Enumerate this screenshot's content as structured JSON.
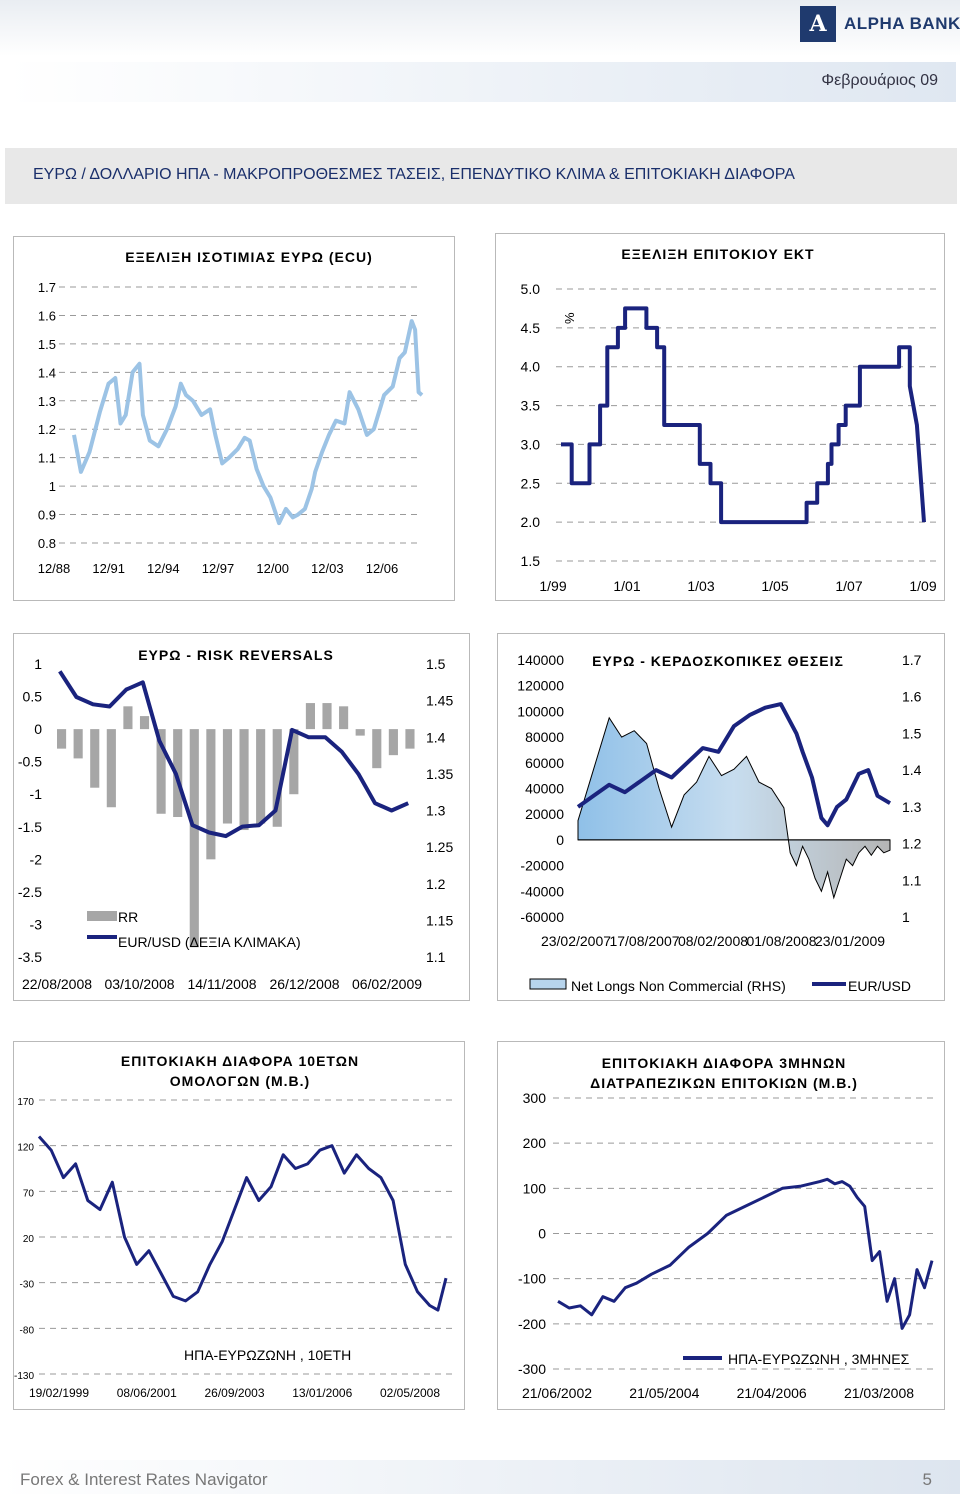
{
  "header": {
    "brand": "ALPHA BANK",
    "brand_mark": "A",
    "date": "Φεβρουάριος 09"
  },
  "page_title": "ΕΥΡΩ / ΔΟΛΛΑΡΙΟ ΗΠΑ - ΜΑΚΡΟΠΡΟΘΕΣΜΕΣ ΤΑΣΕΙΣ, ΕΠΕΝΔΥΤΙΚΟ ΚΛΙΜΑ & ΕΠΙΤΟΚΙΑΚΗ ΔΙΑΦΟΡΑ",
  "footer": {
    "text": "Forex & Interest Rates Navigator",
    "page": "5"
  },
  "colors": {
    "navy": "#1a237e",
    "light_blue": "#93c2e6",
    "gray_bar": "#a6a6a6",
    "gray_area": "#bdbdbd"
  },
  "chart_data": [
    {
      "type": "line",
      "title": "ΕΞΕΛΙΞΗ ΙΣΟΤΙΜΙΑΣ ΕΥΡΩ (ECU)",
      "y_ticks": [
        "1.7",
        "1.6",
        "1.5",
        "1.4",
        "1.3",
        "1.2",
        "1.1",
        "1",
        "0.9",
        "0.8"
      ],
      "ylim": [
        0.8,
        1.7
      ],
      "x_ticks": [
        "12/88",
        "12/91",
        "12/94",
        "12/97",
        "12/00",
        "12/03",
        "12/06"
      ],
      "xlim": [
        1988.9,
        2009.1
      ],
      "series": [
        {
          "color": "#9cc3e5",
          "x": [
            1988.9,
            1989.3,
            1989.8,
            1990.4,
            1990.9,
            1991.3,
            1991.6,
            1991.9,
            1992.3,
            1992.7,
            1992.9,
            1993.3,
            1993.8,
            1994.3,
            1994.8,
            1995.1,
            1995.4,
            1995.8,
            1996.3,
            1996.8,
            1997.1,
            1997.5,
            1997.9,
            1998.4,
            1998.8,
            1999.1,
            1999.5,
            1999.9,
            2000.3,
            2000.8,
            2001.2,
            2001.6,
            2001.9,
            2002.3,
            2002.7,
            2002.9,
            2003.3,
            2003.7,
            2004.1,
            2004.6,
            2004.9,
            2005.4,
            2005.9,
            2006.3,
            2006.7,
            2006.9,
            2007.4,
            2007.8,
            2008.1,
            2008.5,
            2008.7,
            2008.9,
            2009.1
          ],
          "y": [
            1.18,
            1.05,
            1.12,
            1.26,
            1.36,
            1.38,
            1.22,
            1.25,
            1.4,
            1.43,
            1.25,
            1.16,
            1.14,
            1.2,
            1.28,
            1.36,
            1.32,
            1.3,
            1.25,
            1.27,
            1.18,
            1.08,
            1.1,
            1.13,
            1.17,
            1.16,
            1.06,
            1.0,
            0.96,
            0.87,
            0.92,
            0.89,
            0.9,
            0.92,
            0.99,
            1.05,
            1.12,
            1.18,
            1.23,
            1.22,
            1.33,
            1.27,
            1.18,
            1.2,
            1.28,
            1.32,
            1.35,
            1.45,
            1.47,
            1.58,
            1.55,
            1.33,
            1.32
          ]
        }
      ]
    },
    {
      "type": "line",
      "title": "ΕΞΕΛΙΞΗ ΕΠΙΤΟΚΙΟΥ ΕΚΤ",
      "ylabel": "%",
      "y_ticks": [
        "5.0",
        "4.5",
        "4.0",
        "3.5",
        "3.0",
        "2.5",
        "2.0",
        "1.5"
      ],
      "ylim": [
        1.5,
        5.0
      ],
      "x_ticks": [
        "1/99",
        "1/01",
        "1/03",
        "1/05",
        "1/07",
        "1/09"
      ],
      "xlim": [
        1999.0,
        2009.2
      ],
      "series": [
        {
          "color": "#1a237e",
          "x": [
            1999.0,
            1999.3,
            1999.3,
            1999.8,
            1999.8,
            2000.1,
            2000.1,
            2000.3,
            2000.3,
            2000.6,
            2000.6,
            2000.8,
            2000.8,
            2001.4,
            2001.4,
            2001.7,
            2001.7,
            2001.9,
            2001.9,
            2002.9,
            2002.9,
            2003.2,
            2003.2,
            2003.5,
            2003.5,
            2005.9,
            2005.9,
            2006.2,
            2006.2,
            2006.5,
            2006.5,
            2006.6,
            2006.6,
            2006.8,
            2006.8,
            2007.0,
            2007.0,
            2007.4,
            2007.4,
            2008.5,
            2008.5,
            2008.8,
            2008.8,
            2009.0,
            2009.2
          ],
          "y": [
            3.0,
            3.0,
            2.5,
            2.5,
            3.0,
            3.0,
            3.5,
            3.5,
            4.25,
            4.25,
            4.5,
            4.5,
            4.75,
            4.75,
            4.5,
            4.5,
            4.25,
            4.25,
            3.25,
            3.25,
            2.75,
            2.75,
            2.5,
            2.5,
            2.0,
            2.0,
            2.25,
            2.25,
            2.5,
            2.5,
            2.75,
            2.75,
            3.0,
            3.0,
            3.25,
            3.25,
            3.5,
            3.5,
            4.0,
            4.0,
            4.25,
            4.25,
            3.75,
            3.25,
            2.0
          ]
        }
      ]
    },
    {
      "type": "bar",
      "title": "ΕΥΡΩ - RISK REVERSALS",
      "y_ticks_left": [
        "1",
        "0.5",
        "0",
        "-0.5",
        "-1",
        "-1.5",
        "-2",
        "-2.5",
        "-3",
        "-3.5"
      ],
      "ylim_left": [
        -3.5,
        1.0
      ],
      "y_ticks_right": [
        "1.5",
        "1.45",
        "1.4",
        "1.35",
        "1.3",
        "1.25",
        "1.2",
        "1.15",
        "1.1"
      ],
      "ylim_right": [
        1.1,
        1.5
      ],
      "x_ticks": [
        "22/08/2008",
        "03/10/2008",
        "14/11/2008",
        "26/12/2008",
        "06/02/2009"
      ],
      "series": [
        {
          "name": "RR",
          "color": "#a6a6a6",
          "values": [
            -0.3,
            -0.45,
            -0.9,
            -1.2,
            0.35,
            0.2,
            -1.3,
            -1.35,
            -3.35,
            -2.0,
            -1.45,
            -1.55,
            -1.45,
            -1.5,
            -1.0,
            0.4,
            0.4,
            0.35,
            -0.1,
            -0.6,
            -0.4,
            -0.3
          ]
        },
        {
          "name": "EUR/USD (ΔΕΞΙΑ ΚΛΙΜΑΚΑ)",
          "color": "#1a237e",
          "values": [
            1.49,
            1.455,
            1.445,
            1.442,
            1.465,
            1.475,
            1.395,
            1.35,
            1.28,
            1.27,
            1.265,
            1.278,
            1.28,
            1.3,
            1.41,
            1.4,
            1.4,
            1.38,
            1.35,
            1.31,
            1.3,
            1.31
          ]
        }
      ]
    },
    {
      "type": "area",
      "title": "ΕΥΡΩ - ΚΕΡΔΟΣΚΟΠΙΚΕΣ ΘΕΣΕΙΣ",
      "y_ticks_left": [
        "140000",
        "120000",
        "100000",
        "80000",
        "60000",
        "40000",
        "20000",
        "0",
        "-20000",
        "-40000",
        "-60000"
      ],
      "ylim_left": [
        -60000,
        140000
      ],
      "y_ticks_right": [
        "1.7",
        "1.6",
        "1.5",
        "1.4",
        "1.3",
        "1.2",
        "1.1",
        "1"
      ],
      "ylim_right": [
        1.0,
        1.7
      ],
      "x_ticks": [
        "23/02/2007",
        "17/08/2007",
        "08/02/2008",
        "01/08/2008",
        "23/01/2009"
      ],
      "legend": [
        "Net Longs Non Commercial (RHS)",
        "EUR/USD"
      ],
      "series": [
        {
          "name": "Net Longs Non Commercial (RHS)",
          "color": "#93c2e6",
          "x": [
            0.0,
            0.05,
            0.1,
            0.14,
            0.18,
            0.22,
            0.26,
            0.3,
            0.34,
            0.38,
            0.42,
            0.46,
            0.5,
            0.54,
            0.58,
            0.62,
            0.66,
            0.68,
            0.7,
            0.72,
            0.74,
            0.76,
            0.78,
            0.8,
            0.82,
            0.84,
            0.86,
            0.88,
            0.9,
            0.92,
            0.94,
            0.96,
            0.98,
            1.0
          ],
          "y": [
            15000,
            55000,
            95000,
            80000,
            85000,
            75000,
            40000,
            10000,
            35000,
            45000,
            65000,
            50000,
            55000,
            65000,
            45000,
            40000,
            25000,
            -10000,
            -20000,
            -5000,
            -15000,
            -30000,
            -40000,
            -25000,
            -45000,
            -30000,
            -15000,
            -20000,
            -10000,
            -5000,
            -12000,
            -5000,
            -10000,
            -8000
          ]
        },
        {
          "name": "EUR/USD",
          "color": "#1a237e",
          "x": [
            0.0,
            0.05,
            0.1,
            0.15,
            0.2,
            0.25,
            0.3,
            0.35,
            0.4,
            0.45,
            0.5,
            0.55,
            0.6,
            0.65,
            0.7,
            0.72,
            0.75,
            0.78,
            0.8,
            0.83,
            0.86,
            0.9,
            0.93,
            0.96,
            1.0
          ],
          "y": [
            1.3,
            1.33,
            1.36,
            1.34,
            1.37,
            1.4,
            1.38,
            1.42,
            1.46,
            1.45,
            1.52,
            1.55,
            1.57,
            1.58,
            1.5,
            1.45,
            1.38,
            1.27,
            1.25,
            1.3,
            1.32,
            1.39,
            1.4,
            1.33,
            1.31
          ]
        }
      ]
    },
    {
      "type": "line",
      "title": "ΕΠΙΤΟΚΙΑΚΗ ΔΙΑΦΟΡΑ 10ΕΤΩΝ ΟΜΟΛΟΓΩΝ (Μ.Β.)",
      "title_lines": [
        "ΕΠΙΤΟΚΙΑΚΗ ΔΙΑΦΟΡΑ 10ΕΤΩΝ",
        "ΟΜΟΛΟΓΩΝ (Μ.Β.)"
      ],
      "y_ticks": [
        "170",
        "120",
        "70",
        "20",
        "-30",
        "-80",
        "-130"
      ],
      "ylim": [
        -130,
        170
      ],
      "x_ticks": [
        "19/02/1999",
        "08/06/2001",
        "26/09/2003",
        "13/01/2006",
        "02/05/2008"
      ],
      "legend": [
        "ΗΠΑ-ΕΥΡΩΖΩΝΗ , 10ΕΤΗ"
      ],
      "series": [
        {
          "name": "ΗΠΑ-ΕΥΡΩΖΩΝΗ , 10ΕΤΗ",
          "color": "#1a237e",
          "x": [
            0.0,
            0.03,
            0.06,
            0.09,
            0.12,
            0.15,
            0.18,
            0.21,
            0.24,
            0.27,
            0.3,
            0.33,
            0.36,
            0.39,
            0.42,
            0.45,
            0.48,
            0.51,
            0.54,
            0.57,
            0.6,
            0.63,
            0.66,
            0.69,
            0.72,
            0.75,
            0.78,
            0.81,
            0.84,
            0.87,
            0.9,
            0.93,
            0.96,
            0.98,
            1.0
          ],
          "y": [
            130,
            115,
            85,
            100,
            60,
            50,
            80,
            20,
            -10,
            5,
            -20,
            -45,
            -50,
            -40,
            -10,
            15,
            50,
            85,
            60,
            75,
            110,
            95,
            100,
            115,
            120,
            90,
            110,
            95,
            85,
            60,
            -10,
            -40,
            -55,
            -60,
            -25
          ]
        }
      ]
    },
    {
      "type": "line",
      "title": "ΕΠΙΤΟΚΙΑΚΗ ΔΙΑΦΟΡΑ 3ΜΗΝΩΝ ΔΙΑΤΡΑΠΕΖΙΚΩΝ ΕΠΙΤΟΚΙΩΝ (Μ.Β.)",
      "title_lines": [
        "ΕΠΙΤΟΚΙΑΚΗ ΔΙΑΦΟΡΑ 3ΜΗΝΩΝ",
        "ΔΙΑΤΡΑΠΕΖΙΚΩΝ ΕΠΙΤΟΚΙΩΝ (Μ.Β.)"
      ],
      "y_ticks": [
        "300",
        "200",
        "100",
        "0",
        "-100",
        "-200",
        "-300"
      ],
      "ylim": [
        -300,
        300
      ],
      "x_ticks": [
        "21/06/2002",
        "21/05/2004",
        "21/04/2006",
        "21/03/2008"
      ],
      "legend": [
        "ΗΠΑ-ΕΥΡΩΖΩΝΗ , 3ΜΗΝΕΣ"
      ],
      "series": [
        {
          "name": "ΗΠΑ-ΕΥΡΩΖΩΝΗ , 3ΜΗΝΕΣ",
          "color": "#1a237e",
          "x": [
            0.0,
            0.03,
            0.06,
            0.09,
            0.12,
            0.15,
            0.18,
            0.21,
            0.25,
            0.3,
            0.35,
            0.4,
            0.45,
            0.5,
            0.55,
            0.6,
            0.65,
            0.7,
            0.72,
            0.74,
            0.76,
            0.78,
            0.8,
            0.82,
            0.84,
            0.86,
            0.88,
            0.9,
            0.92,
            0.94,
            0.96,
            0.98,
            1.0
          ],
          "y": [
            -150,
            -165,
            -160,
            -180,
            -140,
            -150,
            -120,
            -110,
            -90,
            -70,
            -30,
            0,
            40,
            60,
            80,
            100,
            105,
            115,
            120,
            110,
            115,
            105,
            80,
            60,
            -60,
            -40,
            -150,
            -100,
            -210,
            -180,
            -80,
            -120,
            -60
          ]
        }
      ]
    }
  ]
}
